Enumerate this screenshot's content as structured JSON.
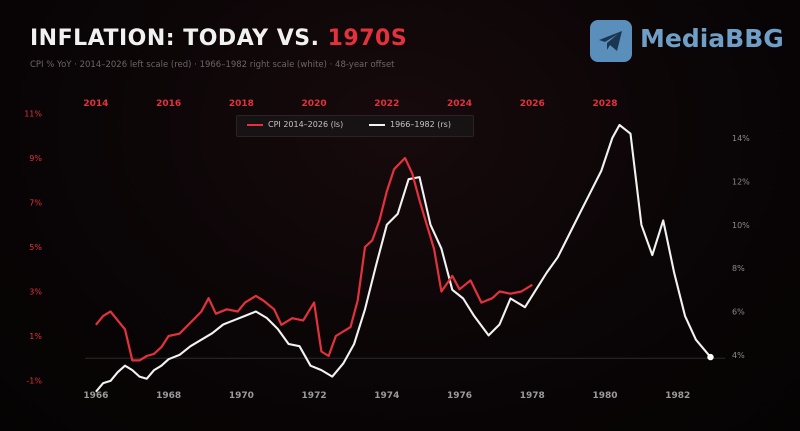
{
  "header": {
    "title_main": "INFLATION: TODAY VS. ",
    "title_accent": "1970S",
    "subtitle": "CPI % YoY · 2014–2026 left scale (red) · 1966–1982 right scale (white) · 48-year offset"
  },
  "brand": {
    "name": "MediaBBG",
    "icon": "telegram-icon",
    "color": "#6f9ec6"
  },
  "chart_data": {
    "type": "line",
    "colors": {
      "red": "#e3323d",
      "white": "#f2f2f2",
      "grid_label": "#7a7a7a"
    },
    "axes": {
      "x_bottom": {
        "range": [
          1965.7,
          1983.3
        ],
        "ticks": [
          "1966",
          "1968",
          "1970",
          "1972",
          "1974",
          "1976",
          "1978",
          "1980",
          "1982"
        ]
      },
      "x_top": {
        "range": [
          2013.7,
          2031.3
        ],
        "ticks": [
          "2014",
          "2016",
          "2018",
          "2020",
          "2022",
          "2024",
          "2026",
          "2028"
        ]
      },
      "y_left": {
        "range": [
          -1.07,
          11.07
        ],
        "ticks": [
          "11%",
          "9%",
          "7%",
          "5%",
          "3%",
          "1%",
          "-1%"
        ]
      },
      "y_right": {
        "range": [
          2.75,
          15.2
        ],
        "ticks": [
          "14%",
          "12%",
          "10%",
          "8%",
          "6%",
          "4%"
        ]
      }
    },
    "legend": {
      "placement": "top-center",
      "items": [
        {
          "label": "CPI 2014–2026 (ls)",
          "color": "#e3323d"
        },
        {
          "label": "1966–1982 (rs)",
          "color": "#f2f2f2"
        }
      ]
    },
    "grid": false,
    "series": [
      {
        "name": "CPI 2014–2026 (ls)",
        "axis": "left-top",
        "x": [
          2014.0,
          2014.2,
          2014.4,
          2014.6,
          2014.8,
          2015.0,
          2015.2,
          2015.4,
          2015.6,
          2015.8,
          2016.0,
          2016.3,
          2016.6,
          2016.9,
          2017.1,
          2017.3,
          2017.6,
          2017.9,
          2018.1,
          2018.4,
          2018.6,
          2018.9,
          2019.1,
          2019.4,
          2019.7,
          2020.0,
          2020.2,
          2020.4,
          2020.6,
          2020.8,
          2021.0,
          2021.2,
          2021.4,
          2021.6,
          2021.8,
          2022.0,
          2022.2,
          2022.5,
          2022.7,
          2022.9,
          2023.1,
          2023.3,
          2023.5,
          2023.8,
          2024.0,
          2024.3,
          2024.6,
          2024.9,
          2025.1,
          2025.4,
          2025.7,
          2026.0
        ],
        "values": [
          1.5,
          1.9,
          2.1,
          1.7,
          1.3,
          -0.1,
          -0.1,
          0.1,
          0.2,
          0.5,
          1.0,
          1.1,
          1.6,
          2.1,
          2.7,
          2.0,
          2.2,
          2.1,
          2.5,
          2.8,
          2.6,
          2.2,
          1.5,
          1.8,
          1.7,
          2.5,
          0.3,
          0.1,
          1.0,
          1.2,
          1.4,
          2.6,
          5.0,
          5.3,
          6.2,
          7.5,
          8.5,
          9.0,
          8.3,
          7.1,
          6.0,
          4.9,
          3.0,
          3.7,
          3.1,
          3.5,
          2.5,
          2.7,
          3.0,
          2.9,
          3.0,
          3.3
        ]
      },
      {
        "name": "1966–1982 (rs)",
        "axis": "right-bottom",
        "x": [
          1966.0,
          1966.2,
          1966.4,
          1966.6,
          1966.8,
          1967.0,
          1967.2,
          1967.4,
          1967.6,
          1967.8,
          1968.0,
          1968.3,
          1968.6,
          1968.9,
          1969.2,
          1969.5,
          1969.8,
          1970.1,
          1970.4,
          1970.7,
          1971.0,
          1971.3,
          1971.6,
          1971.9,
          1972.2,
          1972.5,
          1972.8,
          1973.1,
          1973.4,
          1973.7,
          1974.0,
          1974.3,
          1974.6,
          1974.9,
          1975.2,
          1975.5,
          1975.8,
          1976.1,
          1976.4,
          1976.8,
          1977.1,
          1977.4,
          1977.8,
          1978.1,
          1978.4,
          1978.7,
          1979.0,
          1979.3,
          1979.6,
          1979.9,
          1980.2,
          1980.4,
          1980.7,
          1981.0,
          1981.3,
          1981.6,
          1981.9,
          1982.2,
          1982.5,
          1982.9
        ],
        "values": [
          2.3,
          2.7,
          2.8,
          3.2,
          3.5,
          3.3,
          3.0,
          2.9,
          3.3,
          3.5,
          3.8,
          4.0,
          4.4,
          4.7,
          5.0,
          5.4,
          5.6,
          5.8,
          6.0,
          5.7,
          5.2,
          4.5,
          4.4,
          3.5,
          3.3,
          3.0,
          3.6,
          4.5,
          6.1,
          8.1,
          10.0,
          10.5,
          12.1,
          12.2,
          10.0,
          8.9,
          7.0,
          6.6,
          5.8,
          4.9,
          5.4,
          6.6,
          6.2,
          7.0,
          7.8,
          8.5,
          9.5,
          10.5,
          11.5,
          12.5,
          14.0,
          14.6,
          14.2,
          10.0,
          8.6,
          10.2,
          7.8,
          5.8,
          4.7,
          3.9
        ]
      }
    ]
  }
}
